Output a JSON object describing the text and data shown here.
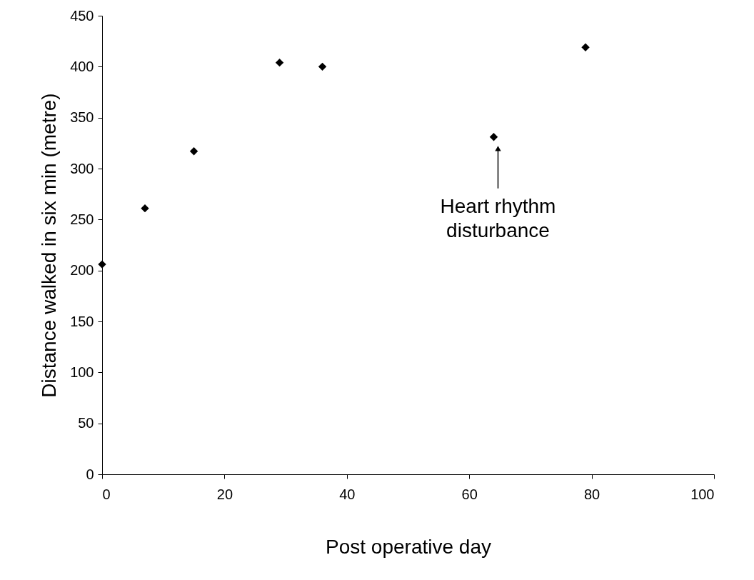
{
  "chart_data": {
    "type": "scatter",
    "xlabel": "Post operative day",
    "ylabel": "Distance walked in six min (metre)",
    "x": [
      0,
      7,
      15,
      29,
      36,
      64,
      79
    ],
    "series": [
      {
        "color": "#000000",
        "values": [
          206,
          261,
          317,
          404,
          400,
          331,
          419
        ]
      }
    ],
    "marker": "diamond",
    "grid": false,
    "legend": false,
    "xlim": [
      0,
      100
    ],
    "xticks": [
      0,
      20,
      40,
      60,
      80,
      100
    ],
    "ylim": [
      0,
      450
    ],
    "yticks": [
      0,
      50,
      100,
      150,
      200,
      250,
      300,
      350,
      400,
      450
    ],
    "annotations": [
      {
        "text": "Heart rhythm\ndisturbance",
        "x": 64,
        "y": 331
      }
    ]
  }
}
